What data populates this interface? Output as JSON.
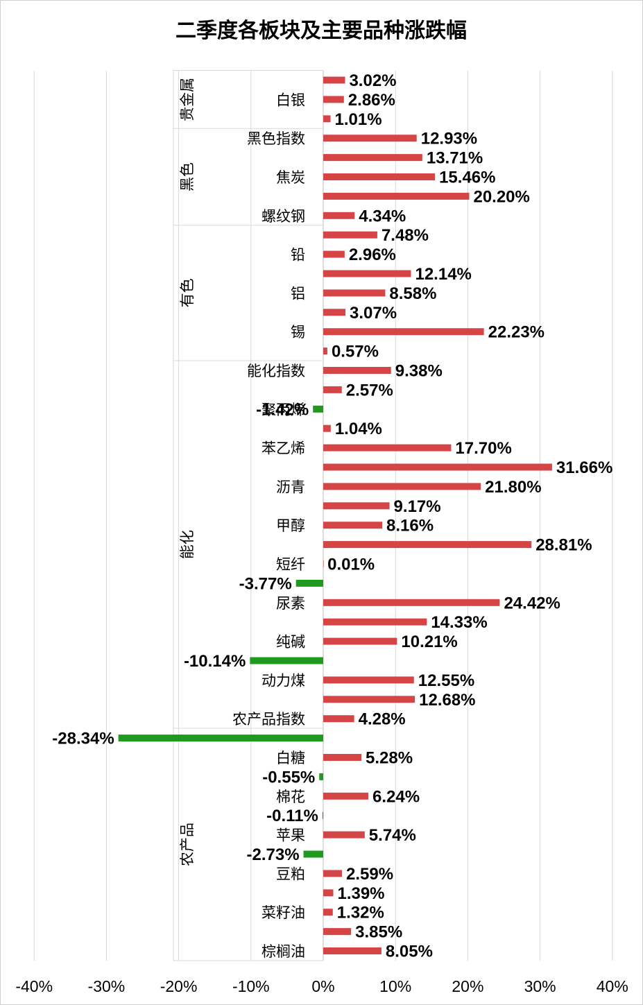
{
  "chart_data": {
    "type": "bar",
    "orientation": "horizontal",
    "title": "二季度各板块及主要品种涨跌幅",
    "xlim": [
      -40,
      40
    ],
    "x_ticks": [
      "-40%",
      "-30%",
      "-20%",
      "-10%",
      "0%",
      "10%",
      "20%",
      "30%",
      "40%"
    ],
    "x_tick_values": [
      -40,
      -30,
      -20,
      -10,
      0,
      10,
      20,
      30,
      40
    ],
    "grid": true,
    "legend": "none",
    "colors": {
      "positive": "#d64545",
      "negative": "#1f9a1f",
      "grid": "#d9d9d9",
      "axis": "#bfbfbf"
    },
    "groups": [
      {
        "name": "贵金属",
        "start": 0,
        "end": 2
      },
      {
        "name": "黑色",
        "start": 3,
        "end": 7
      },
      {
        "name": "有色",
        "start": 8,
        "end": 14
      },
      {
        "name": "能化",
        "start": 15,
        "end": 33
      },
      {
        "name": "农产品",
        "start": 34,
        "end": 45
      }
    ],
    "categories": [
      "",
      "白银",
      "",
      "黑色指数",
      "",
      "焦炭",
      "",
      "螺纹钢",
      "",
      "铅",
      "",
      "铝",
      "",
      "锡",
      "",
      "能化指数",
      "",
      "聚丙烯",
      "",
      "苯乙烯",
      "",
      "沥青",
      "",
      "甲醇",
      "",
      "短纤",
      "",
      "尿素",
      "",
      "纯碱",
      "",
      "动力煤",
      "",
      "农产品指数",
      "",
      "白糖",
      "",
      "棉花",
      "",
      "苹果",
      "",
      "豆粕",
      "",
      "菜籽油",
      "",
      "棕榈油"
    ],
    "values": [
      3.02,
      2.86,
      1.01,
      12.93,
      13.71,
      15.46,
      20.2,
      4.34,
      7.48,
      2.96,
      12.14,
      8.58,
      3.07,
      22.23,
      0.57,
      9.38,
      2.57,
      -1.42,
      1.04,
      17.7,
      31.66,
      21.8,
      9.17,
      8.16,
      28.81,
      0.01,
      -3.77,
      24.42,
      14.33,
      10.21,
      -10.14,
      12.55,
      12.68,
      4.28,
      -28.34,
      5.28,
      -0.55,
      6.24,
      -0.11,
      5.74,
      -2.73,
      2.59,
      1.39,
      1.32,
      3.85,
      8.05
    ],
    "data_labels": [
      "3.02%",
      "2.86%",
      "1.01%",
      "12.93%",
      "13.71%",
      "15.46%",
      "20.20%",
      "4.34%",
      "7.48%",
      "2.96%",
      "12.14%",
      "8.58%",
      "3.07%",
      "22.23%",
      "0.57%",
      "9.38%",
      "2.57%",
      "-1.42%",
      "1.04%",
      "17.70%",
      "31.66%",
      "21.80%",
      "9.17%",
      "8.16%",
      "28.81%",
      "0.01%",
      "-3.77%",
      "24.42%",
      "14.33%",
      "10.21%",
      "-10.14%",
      "12.55%",
      "12.68%",
      "4.28%",
      "-28.34%",
      "5.28%",
      "-0.55%",
      "6.24%",
      "-0.11%",
      "5.74%",
      "-2.73%",
      "2.59%",
      "1.39%",
      "1.32%",
      "3.85%",
      "8.05%"
    ]
  }
}
